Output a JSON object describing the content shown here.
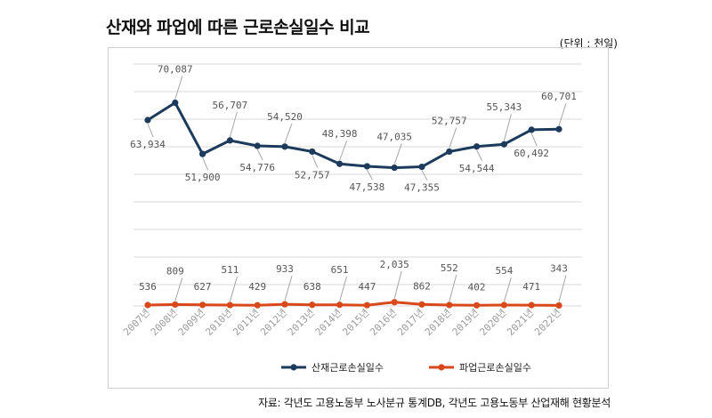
{
  "header": {
    "title": "산재와 파업에 따른 근로손실일수 비교",
    "unit": "(단위 : 천일)"
  },
  "footer": {
    "source": "자료: 각년도 고용노동부 노사분규 통계DB, 각년도 고용노동부 산업재해 현황분석"
  },
  "colors": {
    "series_1": "#1b3a5c",
    "series_2": "#d9481a",
    "grid": "#d9d9d9",
    "leader": "#a6a6a6"
  },
  "chart_data": {
    "type": "line",
    "title": "산재와 파업에 따른 근로손실일수 비교",
    "unit": "(단위 : 천일)",
    "grid": true,
    "legend_position": "bottom",
    "categories": [
      "2007년",
      "2008년",
      "2009년",
      "2010년",
      "2011년",
      "2012년",
      "2013년",
      "2014년",
      "2015년",
      "2016년",
      "2017년",
      "2018년",
      "2019년",
      "2020년",
      "2021년",
      "2022년"
    ],
    "series": [
      {
        "name": "산재근로손실일수",
        "values": [
          63934,
          70087,
          51900,
          56707,
          54776,
          54520,
          52757,
          48398,
          47538,
          47035,
          47355,
          52757,
          54544,
          55343,
          60492,
          60701
        ],
        "labels": [
          "63,934",
          "70,087",
          "51,900",
          "56,707",
          "54,776",
          "54,520",
          "52,757",
          "48,398",
          "47,538",
          "47,035",
          "47,355",
          "52,757",
          "54,544",
          "55,343",
          "60,492",
          "60,701"
        ]
      },
      {
        "name": "파업근로손실일수",
        "values": [
          536,
          809,
          627,
          511,
          429,
          933,
          638,
          651,
          447,
          2035,
          862,
          552,
          402,
          554,
          471,
          343
        ],
        "labels": [
          "536",
          "809",
          "627",
          "511",
          "429",
          "933",
          "638",
          "651",
          "447",
          "2,035",
          "862",
          "552",
          "402",
          "554",
          "471",
          "343"
        ]
      }
    ]
  }
}
